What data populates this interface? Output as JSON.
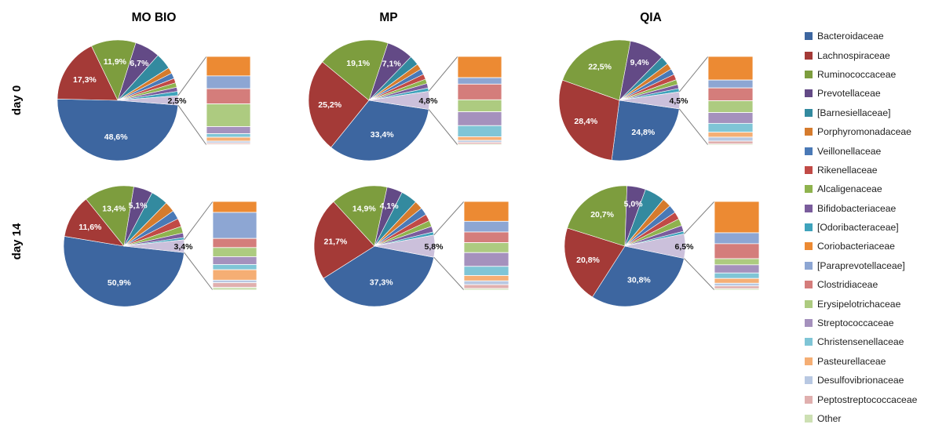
{
  "colors": {
    "Bacteroidaceae": "#3D66A0",
    "Lachnospiraceae": "#A43A37",
    "Ruminococcaceae": "#7D9D3E",
    "Prevotellaceae": "#634A86",
    "[Barnesiellaceae]": "#338A9F",
    "Porphyromonadaceae": "#D57B2D",
    "Veillonellaceae": "#4A79B6",
    "Rikenellaceae": "#C14A46",
    "Alcaligenaceae": "#8FB34E",
    "Bifidobacteriaceae": "#7A5C9C",
    "[Odoribacteraceae]": "#3FA3BC",
    "Coriobacteriaceae": "#EC8A33",
    "[Paraprevotellaceae]": "#8DA6D3",
    "Clostridiaceae": "#D47D7B",
    "Erysipelotrichaceae": "#ADCB80",
    "Streptococcaceae": "#A591BD",
    "Christensenellaceae": "#7FC5D6",
    "Pasteurellaceae": "#F5AE74",
    "Desulfovibrionaceae": "#B8C8E2",
    "Peptostreptococcaceae": "#E0AFAE",
    "Other": "#CDE0B3",
    "Minor": "#CBC0DB"
  },
  "legend": [
    "Bacteroidaceae",
    "Lachnospiraceae",
    "Ruminococcaceae",
    "Prevotellaceae",
    "[Barnesiellaceae]",
    "Porphyromonadaceae",
    "Veillonellaceae",
    "Rikenellaceae",
    "Alcaligenaceae",
    "Bifidobacteriaceae",
    "[Odoribacteraceae]",
    "Coriobacteriaceae",
    "[Paraprevotellaceae]",
    "Clostridiaceae",
    "Erysipelotrichaceae",
    "Streptococcaceae",
    "Christensenellaceae",
    "Pasteurellaceae",
    "Desulfovibrionaceae",
    "Peptostreptococcaceae",
    "Other"
  ],
  "column_labels": [
    "MO BIO",
    "MP",
    "QIA"
  ],
  "row_labels": [
    "day 0",
    "day 14"
  ],
  "chart_data": [
    {
      "type": "pie",
      "group": "MO BIO",
      "day": "day 0",
      "slices": [
        {
          "name": "Bacteroidaceae",
          "value": 48.6,
          "label": "48,6%"
        },
        {
          "name": "Lachnospiraceae",
          "value": 17.3,
          "label": "17,3%"
        },
        {
          "name": "Ruminococcaceae",
          "value": 11.9,
          "label": "11,9%"
        },
        {
          "name": "Prevotellaceae",
          "value": 6.7,
          "label": "6,7%"
        },
        {
          "name": "[Barnesiellaceae]",
          "value": 4.3,
          "label": ""
        },
        {
          "name": "Porphyromonadaceae",
          "value": 1.6,
          "label": ""
        },
        {
          "name": "Veillonellaceae",
          "value": 1.5,
          "label": ""
        },
        {
          "name": "Rikenellaceae",
          "value": 1.2,
          "label": ""
        },
        {
          "name": "Alcaligenaceae",
          "value": 1.2,
          "label": ""
        },
        {
          "name": "Bifidobacteriaceae",
          "value": 1.1,
          "label": ""
        },
        {
          "name": "[Odoribacteraceae]",
          "value": 1.1,
          "label": ""
        },
        {
          "name": "Minor",
          "value": 2.5,
          "label": "2,5%"
        }
      ],
      "minor": [
        {
          "name": "Coriobacteriaceae",
          "value": 0.55
        },
        {
          "name": "[Paraprevotellaceae]",
          "value": 0.36
        },
        {
          "name": "Clostridiaceae",
          "value": 0.43
        },
        {
          "name": "Erysipelotrichaceae",
          "value": 0.64
        },
        {
          "name": "Streptococcaceae",
          "value": 0.2
        },
        {
          "name": "Christensenellaceae",
          "value": 0.1
        },
        {
          "name": "Pasteurellaceae",
          "value": 0.11
        },
        {
          "name": "Desulfovibrionaceae",
          "value": 0.05
        },
        {
          "name": "Peptostreptococcaceae",
          "value": 0.04
        },
        {
          "name": "Other",
          "value": 0.02
        }
      ]
    },
    {
      "type": "pie",
      "group": "MP",
      "day": "day 0",
      "slices": [
        {
          "name": "Bacteroidaceae",
          "value": 33.4,
          "label": "33,4%"
        },
        {
          "name": "Lachnospiraceae",
          "value": 25.2,
          "label": "25,2%"
        },
        {
          "name": "Ruminococcaceae",
          "value": 19.1,
          "label": "19,1%"
        },
        {
          "name": "Prevotellaceae",
          "value": 7.1,
          "label": "7,1%"
        },
        {
          "name": "[Barnesiellaceae]",
          "value": 2.6,
          "label": ""
        },
        {
          "name": "Porphyromonadaceae",
          "value": 1.6,
          "label": ""
        },
        {
          "name": "Veillonellaceae",
          "value": 1.5,
          "label": ""
        },
        {
          "name": "Rikenellaceae",
          "value": 1.4,
          "label": ""
        },
        {
          "name": "Alcaligenaceae",
          "value": 1.2,
          "label": ""
        },
        {
          "name": "Bifidobacteriaceae",
          "value": 1.2,
          "label": ""
        },
        {
          "name": "[Odoribacteraceae]",
          "value": 0.9,
          "label": ""
        },
        {
          "name": "Minor",
          "value": 4.8,
          "label": "4,8%"
        }
      ],
      "minor": [
        {
          "name": "Coriobacteriaceae",
          "value": 1.15
        },
        {
          "name": "[Paraprevotellaceae]",
          "value": 0.35
        },
        {
          "name": "Clostridiaceae",
          "value": 0.85
        },
        {
          "name": "Erysipelotrichaceae",
          "value": 0.65
        },
        {
          "name": "Streptococcaceae",
          "value": 0.75
        },
        {
          "name": "Christensenellaceae",
          "value": 0.6
        },
        {
          "name": "Pasteurellaceae",
          "value": 0.2
        },
        {
          "name": "Desulfovibrionaceae",
          "value": 0.1
        },
        {
          "name": "Peptostreptococcaceae",
          "value": 0.1
        },
        {
          "name": "Other",
          "value": 0.05
        }
      ]
    },
    {
      "type": "pie",
      "group": "QIA",
      "day": "day 0",
      "slices": [
        {
          "name": "Bacteroidaceae",
          "value": 24.8,
          "label": "24,8%"
        },
        {
          "name": "Lachnospiraceae",
          "value": 28.4,
          "label": "28,4%"
        },
        {
          "name": "Ruminococcaceae",
          "value": 22.5,
          "label": "22,5%"
        },
        {
          "name": "Prevotellaceae",
          "value": 9.4,
          "label": "9,4%"
        },
        {
          "name": "[Barnesiellaceae]",
          "value": 2.3,
          "label": ""
        },
        {
          "name": "Porphyromonadaceae",
          "value": 1.7,
          "label": ""
        },
        {
          "name": "Veillonellaceae",
          "value": 1.6,
          "label": ""
        },
        {
          "name": "Rikenellaceae",
          "value": 1.5,
          "label": ""
        },
        {
          "name": "Alcaligenaceae",
          "value": 1.3,
          "label": ""
        },
        {
          "name": "Bifidobacteriaceae",
          "value": 1.1,
          "label": ""
        },
        {
          "name": "[Odoribacteraceae]",
          "value": 0.9,
          "label": ""
        },
        {
          "name": "Minor",
          "value": 4.5,
          "label": "4,5%"
        }
      ],
      "minor": [
        {
          "name": "Coriobacteriaceae",
          "value": 1.2
        },
        {
          "name": "[Paraprevotellaceae]",
          "value": 0.4
        },
        {
          "name": "Clostridiaceae",
          "value": 0.65
        },
        {
          "name": "Erysipelotrichaceae",
          "value": 0.6
        },
        {
          "name": "Streptococcaceae",
          "value": 0.55
        },
        {
          "name": "Christensenellaceae",
          "value": 0.45
        },
        {
          "name": "Pasteurellaceae",
          "value": 0.25
        },
        {
          "name": "Desulfovibrionaceae",
          "value": 0.2
        },
        {
          "name": "Peptostreptococcaceae",
          "value": 0.15
        },
        {
          "name": "Other",
          "value": 0.05
        }
      ]
    },
    {
      "type": "pie",
      "group": "MO BIO",
      "day": "day 14",
      "slices": [
        {
          "name": "Bacteroidaceae",
          "value": 50.9,
          "label": "50,9%"
        },
        {
          "name": "Lachnospiraceae",
          "value": 11.6,
          "label": "11,6%"
        },
        {
          "name": "Ruminococcaceae",
          "value": 13.4,
          "label": "13,4%"
        },
        {
          "name": "Prevotellaceae",
          "value": 5.1,
          "label": "5,1%"
        },
        {
          "name": "[Barnesiellaceae]",
          "value": 4.6,
          "label": ""
        },
        {
          "name": "Porphyromonadaceae",
          "value": 2.8,
          "label": ""
        },
        {
          "name": "Veillonellaceae",
          "value": 2.4,
          "label": ""
        },
        {
          "name": "Rikenellaceae",
          "value": 2.2,
          "label": ""
        },
        {
          "name": "Alcaligenaceae",
          "value": 1.8,
          "label": ""
        },
        {
          "name": "Bifidobacteriaceae",
          "value": 1.2,
          "label": ""
        },
        {
          "name": "[Odoribacteraceae]",
          "value": 0.6,
          "label": ""
        },
        {
          "name": "Minor",
          "value": 3.4,
          "label": "3,4%"
        }
      ],
      "minor": [
        {
          "name": "Coriobacteriaceae",
          "value": 0.42
        },
        {
          "name": "[Paraprevotellaceae]",
          "value": 1.0
        },
        {
          "name": "Clostridiaceae",
          "value": 0.35
        },
        {
          "name": "Erysipelotrichaceae",
          "value": 0.35
        },
        {
          "name": "Streptococcaceae",
          "value": 0.3
        },
        {
          "name": "Christensenellaceae",
          "value": 0.2
        },
        {
          "name": "Pasteurellaceae",
          "value": 0.4
        },
        {
          "name": "Desulfovibrionaceae",
          "value": 0.1
        },
        {
          "name": "Peptostreptococcaceae",
          "value": 0.18
        },
        {
          "name": "Other",
          "value": 0.1
        }
      ]
    },
    {
      "type": "pie",
      "group": "MP",
      "day": "day 14",
      "slices": [
        {
          "name": "Bacteroidaceae",
          "value": 37.3,
          "label": "37,3%"
        },
        {
          "name": "Lachnospiraceae",
          "value": 21.7,
          "label": "21,7%"
        },
        {
          "name": "Ruminococcaceae",
          "value": 14.9,
          "label": "14,9%"
        },
        {
          "name": "Prevotellaceae",
          "value": 4.1,
          "label": "4,1%"
        },
        {
          "name": "[Barnesiellaceae]",
          "value": 4.3,
          "label": ""
        },
        {
          "name": "Porphyromonadaceae",
          "value": 2.2,
          "label": ""
        },
        {
          "name": "Veillonellaceae",
          "value": 2.0,
          "label": ""
        },
        {
          "name": "Rikenellaceae",
          "value": 1.8,
          "label": ""
        },
        {
          "name": "Alcaligenaceae",
          "value": 1.6,
          "label": ""
        },
        {
          "name": "Bifidobacteriaceae",
          "value": 1.5,
          "label": ""
        },
        {
          "name": "[Odoribacteraceae]",
          "value": 0.8,
          "label": ""
        },
        {
          "name": "Minor",
          "value": 5.8,
          "label": "5,8%"
        }
      ],
      "minor": [
        {
          "name": "Coriobacteriaceae",
          "value": 1.3
        },
        {
          "name": "[Paraprevotellaceae]",
          "value": 0.7
        },
        {
          "name": "Clostridiaceae",
          "value": 0.7
        },
        {
          "name": "Erysipelotrichaceae",
          "value": 0.65
        },
        {
          "name": "Streptococcaceae",
          "value": 0.9
        },
        {
          "name": "Christensenellaceae",
          "value": 0.6
        },
        {
          "name": "Pasteurellaceae",
          "value": 0.35
        },
        {
          "name": "Desulfovibrionaceae",
          "value": 0.25
        },
        {
          "name": "Peptostreptococcaceae",
          "value": 0.25
        },
        {
          "name": "Other",
          "value": 0.1
        }
      ]
    },
    {
      "type": "pie",
      "group": "QIA",
      "day": "day 14",
      "slices": [
        {
          "name": "Bacteroidaceae",
          "value": 30.8,
          "label": "30,8%"
        },
        {
          "name": "Lachnospiraceae",
          "value": 20.8,
          "label": "20,8%"
        },
        {
          "name": "Ruminococcaceae",
          "value": 20.7,
          "label": "20,7%"
        },
        {
          "name": "Prevotellaceae",
          "value": 5.0,
          "label": "5,0%"
        },
        {
          "name": "[Barnesiellaceae]",
          "value": 5.4,
          "label": ""
        },
        {
          "name": "Porphyromonadaceae",
          "value": 2.4,
          "label": ""
        },
        {
          "name": "Veillonellaceae",
          "value": 2.2,
          "label": ""
        },
        {
          "name": "Rikenellaceae",
          "value": 2.0,
          "label": ""
        },
        {
          "name": "Alcaligenaceae",
          "value": 1.9,
          "label": ""
        },
        {
          "name": "Bifidobacteriaceae",
          "value": 1.6,
          "label": ""
        },
        {
          "name": "[Odoribacteraceae]",
          "value": 0.7,
          "label": ""
        },
        {
          "name": "Minor",
          "value": 6.5,
          "label": "6,5%"
        }
      ],
      "minor": [
        {
          "name": "Coriobacteriaceae",
          "value": 2.3
        },
        {
          "name": "[Paraprevotellaceae]",
          "value": 0.8
        },
        {
          "name": "Clostridiaceae",
          "value": 1.1
        },
        {
          "name": "Erysipelotrichaceae",
          "value": 0.45
        },
        {
          "name": "Streptococcaceae",
          "value": 0.6
        },
        {
          "name": "Christensenellaceae",
          "value": 0.4
        },
        {
          "name": "Pasteurellaceae",
          "value": 0.35
        },
        {
          "name": "Desulfovibrionaceae",
          "value": 0.2
        },
        {
          "name": "Peptostreptococcaceae",
          "value": 0.2
        },
        {
          "name": "Other",
          "value": 0.1
        }
      ]
    }
  ]
}
